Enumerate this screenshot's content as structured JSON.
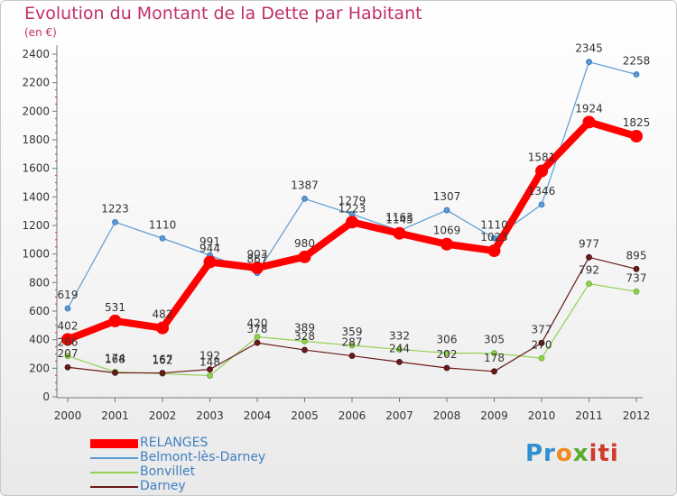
{
  "chart_data": {
    "type": "line",
    "title": "Evolution du Montant de la Dette par Habitant",
    "subtitle": "(en €)",
    "xlabel": "",
    "ylabel": "",
    "categories": [
      "2000",
      "2001",
      "2002",
      "2003",
      "2004",
      "2005",
      "2006",
      "2007",
      "2008",
      "2009",
      "2010",
      "2011",
      "2012"
    ],
    "ylim": [
      0,
      2400
    ],
    "yticks": [
      0,
      200,
      400,
      600,
      800,
      1000,
      1200,
      1400,
      1600,
      1800,
      2000,
      2200,
      2400
    ],
    "grid": false,
    "legend_position": "bottom-left",
    "series": [
      {
        "name": "RELANGES",
        "color": "#ff0000",
        "values": [
          402,
          531,
          482,
          944,
          903,
          980,
          1223,
          1145,
          1069,
          1023,
          1581,
          1924,
          1825
        ]
      },
      {
        "name": "Belmont-lès-Darney",
        "color": "#5b9bd5",
        "values": [
          619,
          1223,
          1110,
          991,
          867,
          1387,
          1279,
          1163,
          1307,
          1110,
          1346,
          2345,
          2258
        ]
      },
      {
        "name": "Bonvillet",
        "color": "#92d050",
        "values": [
          286,
          174,
          162,
          148,
          420,
          389,
          359,
          332,
          306,
          305,
          270,
          792,
          737
        ]
      },
      {
        "name": "Darney",
        "color": "#6b1a1a",
        "values": [
          207,
          168,
          167,
          192,
          378,
          328,
          287,
          244,
          202,
          178,
          377,
          977,
          895
        ]
      }
    ]
  },
  "logo": {
    "part1": "Pr",
    "part2": "o",
    "part3": "x",
    "part4": "iti"
  }
}
